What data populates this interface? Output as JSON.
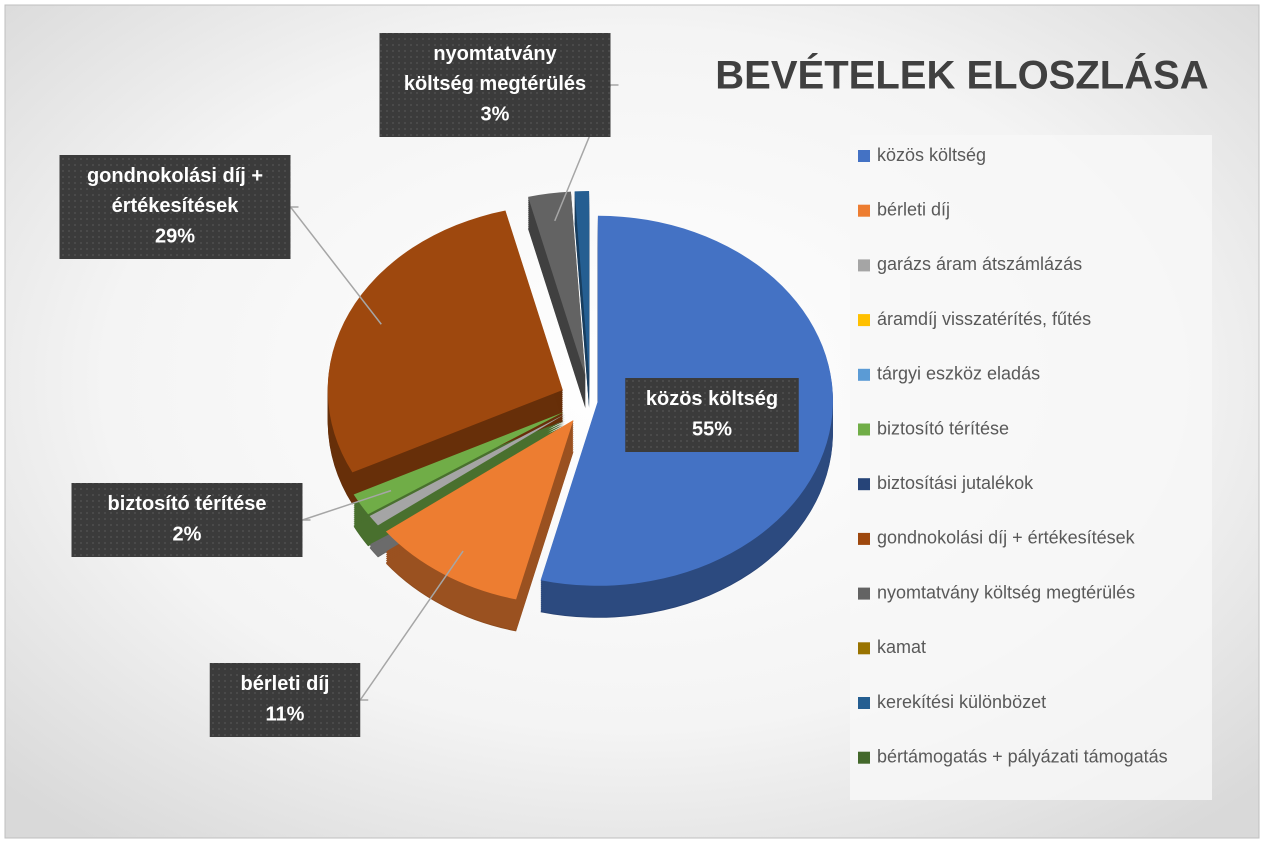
{
  "chart_data": {
    "type": "pie",
    "title": "BEVÉTELEK ELOSZLÁSA",
    "categories": [
      "közös költség",
      "bérleti díj",
      "garázs áram átszámlázás",
      "áramdíj visszatérítés, fűtés",
      "tárgyi eszköz eladás",
      "biztosító térítése",
      "biztosítási jutalékok",
      "gondnokolási díj + értékesítések",
      "nyomtatvány költség megtérülés",
      "kamat",
      "kerekítési különbözet",
      "bértámogatás + pályázati támogatás"
    ],
    "values": [
      55,
      11,
      1,
      0,
      0,
      2,
      0,
      29,
      3,
      0,
      1,
      0
    ],
    "value_labels": [
      "55%",
      "11%",
      null,
      null,
      null,
      "2%",
      null,
      "29%",
      "3%",
      null,
      null,
      null
    ],
    "colors": [
      "#4472c4",
      "#ed7d31",
      "#a5a5a5",
      "#ffc000",
      "#5b9bd5",
      "#70ad47",
      "#264478",
      "#9e480e",
      "#636363",
      "#997300",
      "#255e91",
      "#43682b"
    ],
    "legend": "right"
  }
}
